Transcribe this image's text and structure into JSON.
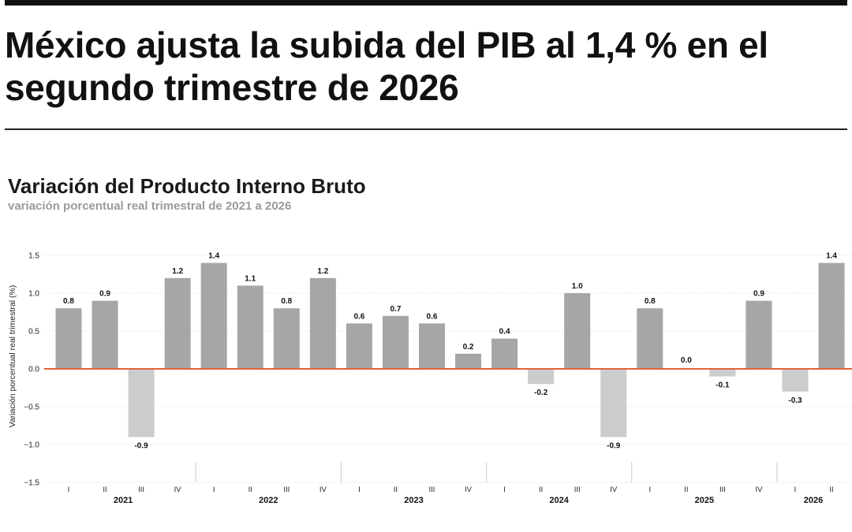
{
  "headline": "México ajusta la subida del PIB al 1,4 % en el segundo trimestre de 2026",
  "colors": {
    "bar_positive": "#a6a6a6",
    "bar_negative": "#cccccc",
    "zero_line": "#e0643a",
    "grid": "#dddddd",
    "text": "#111111"
  },
  "chart_data": {
    "type": "bar",
    "title": "Variación del Producto Interno Bruto",
    "subtitle": "variación porcentual real trimestral de 2021 a 2026",
    "ylabel": "Variación porcentual real trimestral (%)",
    "xlabel": "",
    "ylim": [
      -1.5,
      1.5
    ],
    "yticks": [
      -1.5,
      -1.0,
      -0.5,
      0.0,
      0.5,
      1.0,
      1.5
    ],
    "ytick_labels": [
      "−1.5",
      "−1.0",
      "−0.5",
      "0.0",
      "0.5",
      "1.0",
      "1.5"
    ],
    "grid": true,
    "categories": [
      "I",
      "II",
      "III",
      "IV",
      "I",
      "II",
      "III",
      "IV",
      "I",
      "II",
      "III",
      "IV",
      "I",
      "II",
      "III",
      "IV",
      "I",
      "II",
      "III",
      "IV",
      "I",
      "II"
    ],
    "years": [
      {
        "label": "2021",
        "count": 4
      },
      {
        "label": "2022",
        "count": 4
      },
      {
        "label": "2023",
        "count": 4
      },
      {
        "label": "2024",
        "count": 4
      },
      {
        "label": "2025",
        "count": 4
      },
      {
        "label": "2026",
        "count": 2
      }
    ],
    "values": [
      0.8,
      0.9,
      -0.9,
      1.2,
      1.4,
      1.1,
      0.8,
      1.2,
      0.6,
      0.7,
      0.6,
      0.2,
      0.4,
      -0.2,
      1.0,
      -0.9,
      0.8,
      0.0,
      -0.1,
      0.9,
      -0.3,
      1.4
    ],
    "value_labels": [
      "0.8",
      "0.9",
      "-0.9",
      "1.2",
      "1.4",
      "1.1",
      "0.8",
      "1.2",
      "0.6",
      "0.7",
      "0.6",
      "0.2",
      "0.4",
      "-0.2",
      "1.0",
      "-0.9",
      "0.8",
      "0.0",
      "-0.1",
      "0.9",
      "-0.3",
      "1.4"
    ]
  }
}
